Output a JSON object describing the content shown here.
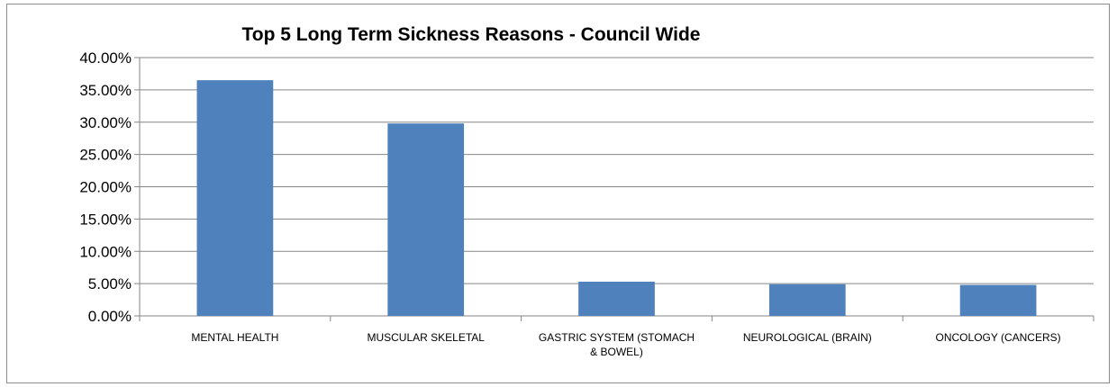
{
  "chart_data": {
    "type": "bar",
    "title": "Top 5 Long Term Sickness Reasons - Council Wide",
    "xlabel": "",
    "ylabel": "",
    "categories": [
      [
        "MENTAL HEALTH"
      ],
      [
        "MUSCULAR SKELETAL"
      ],
      [
        "GASTRIC SYSTEM (STOMACH",
        "& BOWEL)"
      ],
      [
        "NEUROLOGICAL (BRAIN)"
      ],
      [
        "ONCOLOGY (CANCERS)"
      ]
    ],
    "values": [
      0.365,
      0.298,
      0.053,
      0.049,
      0.048
    ],
    "ylim": [
      0,
      0.4
    ],
    "yticks": [
      0,
      0.05,
      0.1,
      0.15,
      0.2,
      0.25,
      0.3,
      0.35,
      0.4
    ],
    "ytick_labels": [
      "0.00%",
      "5.00%",
      "10.00%",
      "15.00%",
      "20.00%",
      "25.00%",
      "30.00%",
      "35.00%",
      "40.00%"
    ],
    "grid": true,
    "legend": "none",
    "colors": {
      "bar": "#4f81bd",
      "grid": "#868686",
      "axis": "#868686",
      "border": "#8c8c8c"
    }
  }
}
